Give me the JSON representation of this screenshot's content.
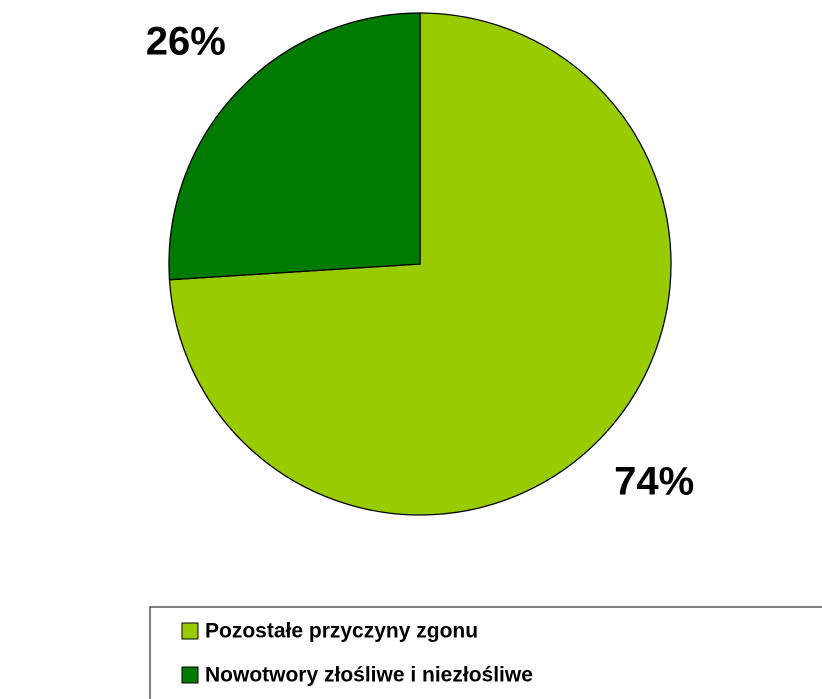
{
  "chart_data": {
    "type": "pie",
    "categories": [
      "Pozostałe przyczyny zgonu",
      "Nowotwory złośliwe i niezłośliwe"
    ],
    "values": [
      74,
      26
    ],
    "value_labels": [
      "74%",
      "26%"
    ],
    "colors": [
      "#99cc00",
      "#007a00"
    ],
    "legend": "bottom"
  }
}
